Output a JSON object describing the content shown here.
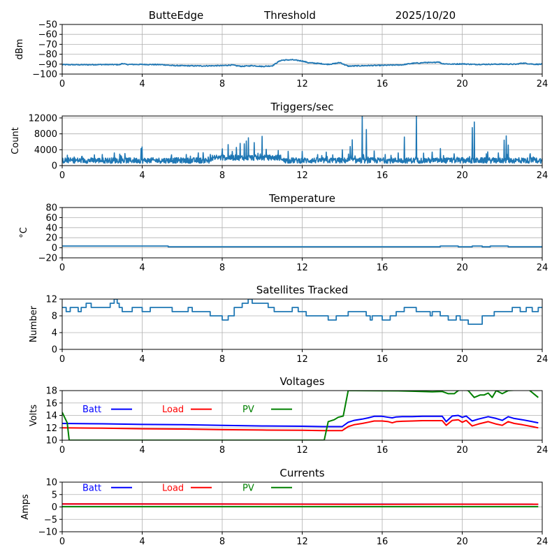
{
  "header": {
    "station": "ButteEdge",
    "mode": "Threshold",
    "date": "2025/10/20"
  },
  "chart_data": [
    {
      "id": "threshold",
      "type": "line",
      "title": "",
      "xlabel": "",
      "ylabel": "dBm",
      "xlim": [
        0,
        24
      ],
      "ylim": [
        -100,
        -50
      ],
      "xticks": [
        0,
        4,
        8,
        12,
        16,
        20,
        24
      ],
      "yticks": [
        -100,
        -90,
        -80,
        -70,
        -60,
        -50
      ],
      "ytick_labels": [
        "−100",
        "−90",
        "−80",
        "−70",
        "−60",
        "−50"
      ],
      "grid": true,
      "series": [
        {
          "name": "threshold",
          "color": "#1f77b4",
          "x": [
            0,
            1,
            2,
            2.9,
            3.0,
            3.2,
            4,
            5,
            5.5,
            6,
            7,
            8,
            8.5,
            8.7,
            9,
            9.5,
            10,
            10.5,
            10.7,
            10.9,
            11,
            11.5,
            12,
            12.3,
            12.6,
            13,
            13.2,
            13.5,
            13.9,
            14.1,
            14.3,
            15,
            16,
            17,
            17.5,
            17.9,
            18.2,
            18.5,
            18.8,
            19,
            19.5,
            20,
            20.5,
            21,
            22,
            22.7,
            23,
            23.3,
            23.6,
            24
          ],
          "y": [
            -90.5,
            -90.6,
            -90.4,
            -90.5,
            -89.2,
            -90.3,
            -90.3,
            -90.5,
            -91.4,
            -91.6,
            -91.8,
            -91.5,
            -90.8,
            -91.6,
            -92.2,
            -91.5,
            -92.3,
            -91.7,
            -89,
            -86.5,
            -86,
            -85.6,
            -86.8,
            -88.5,
            -89,
            -89.6,
            -90.2,
            -89.8,
            -88.4,
            -90.4,
            -92,
            -91.6,
            -91.2,
            -90.7,
            -89.2,
            -88.8,
            -88.3,
            -88.6,
            -87.6,
            -89.5,
            -90,
            -89.7,
            -90.2,
            -90.2,
            -90,
            -90.1,
            -88.9,
            -89.5,
            -90.1,
            -90.1
          ]
        }
      ]
    },
    {
      "id": "triggers",
      "type": "line",
      "title": "Triggers/sec",
      "xlabel": "",
      "ylabel": "Count",
      "xlim": [
        0,
        24
      ],
      "ylim": [
        0,
        12500
      ],
      "xticks": [
        0,
        4,
        8,
        12,
        16,
        20,
        24
      ],
      "yticks": [
        0,
        4000,
        8000,
        12000
      ],
      "ytick_labels": [
        "0",
        "4000",
        "8000",
        "12000"
      ],
      "grid": true,
      "baseline": 1300,
      "series": [
        {
          "name": "triggers",
          "color": "#1f77b4",
          "spikes_x": [
            2.0,
            2.6,
            3.95,
            4.0,
            6.2,
            6.8,
            7.4,
            8.0,
            8.3,
            8.7,
            8.9,
            9.1,
            9.2,
            9.3,
            9.6,
            10.0,
            10.2,
            10.8,
            11.3,
            12.0,
            13.2,
            14.0,
            14.4,
            14.5,
            15.0,
            15.2,
            15.6,
            16.8,
            17.1,
            17.7,
            18.5,
            18.9,
            19.6,
            20.5,
            20.6,
            21.2,
            21.8,
            22.1,
            22.2,
            22.3,
            23.4
          ],
          "spikes_y": [
            2800,
            3200,
            4300,
            4700,
            2800,
            3200,
            2800,
            4200,
            5300,
            4600,
            5600,
            5500,
            6200,
            7000,
            5800,
            7400,
            4100,
            3800,
            3600,
            3600,
            3400,
            4000,
            4800,
            6500,
            12500,
            9100,
            3700,
            3200,
            7200,
            12500,
            3400,
            4300,
            3000,
            9600,
            11000,
            3000,
            3200,
            6400,
            7500,
            5200,
            3000
          ]
        }
      ]
    },
    {
      "id": "temperature",
      "type": "line",
      "title": "Temperature",
      "xlabel": "",
      "ylabel": "°C",
      "xlim": [
        0,
        24
      ],
      "ylim": [
        -20,
        80
      ],
      "xticks": [
        0,
        4,
        8,
        12,
        16,
        20,
        24
      ],
      "yticks": [
        -20,
        0,
        20,
        40,
        60,
        80
      ],
      "ytick_labels": [
        "−20",
        "0",
        "20",
        "40",
        "60",
        "80"
      ],
      "grid": true,
      "series": [
        {
          "name": "temperature",
          "color": "#1f77b4",
          "x": [
            0,
            5.3,
            5.3,
            18.9,
            18.9,
            19.8,
            19.8,
            20.5,
            20.5,
            21.0,
            21.0,
            21.4,
            21.4,
            22.3,
            22.3,
            24
          ],
          "y": [
            3.5,
            3.5,
            2,
            2,
            3.5,
            3.5,
            2,
            2,
            3.5,
            3.5,
            2,
            2,
            3.5,
            3.5,
            2,
            2
          ]
        }
      ]
    },
    {
      "id": "satellites",
      "type": "line",
      "title": "Satellites Tracked",
      "xlabel": "",
      "ylabel": "Number",
      "xlim": [
        0,
        24
      ],
      "ylim": [
        0,
        12
      ],
      "xticks": [
        0,
        4,
        8,
        12,
        16,
        20,
        24
      ],
      "yticks": [
        0,
        4,
        8,
        12
      ],
      "ytick_labels": [
        "0",
        "4",
        "8",
        "12"
      ],
      "grid": true,
      "series": [
        {
          "name": "satellites",
          "color": "#1f77b4",
          "x": [
            0,
            0.2,
            0.2,
            0.4,
            0.4,
            0.8,
            0.8,
            0.95,
            0.95,
            1.2,
            1.2,
            1.45,
            1.45,
            2.4,
            2.4,
            2.6,
            2.6,
            2.75,
            2.75,
            2.85,
            2.85,
            3.0,
            3.0,
            3.15,
            3.15,
            3.5,
            3.5,
            4.0,
            4.0,
            4.1,
            4.1,
            4.4,
            4.4,
            5.3,
            5.3,
            5.5,
            5.5,
            6.3,
            6.3,
            6.5,
            6.5,
            7.4,
            7.4,
            8.0,
            8.0,
            8.3,
            8.3,
            8.6,
            8.6,
            9.0,
            9.0,
            9.3,
            9.3,
            9.5,
            9.5,
            10.3,
            10.3,
            10.6,
            10.6,
            11.5,
            11.5,
            11.8,
            11.8,
            12.2,
            12.2,
            12.5,
            12.5,
            13.3,
            13.3,
            13.7,
            13.7,
            14.3,
            14.3,
            15.2,
            15.2,
            15.4,
            15.4,
            15.5,
            15.5,
            16.0,
            16.0,
            16.4,
            16.4,
            16.7,
            16.7,
            17.1,
            17.1,
            17.7,
            17.7,
            18.4,
            18.4,
            18.5,
            18.5,
            18.9,
            18.9,
            19.3,
            19.3,
            19.7,
            19.7,
            19.9,
            19.9,
            20.3,
            20.3,
            21.0,
            21.0,
            21.6,
            21.6,
            22.5,
            22.5,
            22.9,
            22.9,
            23.2,
            23.2,
            23.5,
            23.5,
            23.8,
            23.8,
            24
          ],
          "y": [
            10,
            10,
            9,
            9,
            10,
            10,
            9,
            9,
            10,
            10,
            11,
            11,
            10,
            10,
            11,
            11,
            12,
            12,
            11,
            11,
            10,
            10,
            9,
            9,
            9,
            9,
            10,
            10,
            9,
            9,
            9,
            9,
            10,
            10,
            10,
            10,
            9,
            9,
            10,
            10,
            9,
            9,
            8,
            8,
            7,
            7,
            8,
            8,
            10,
            10,
            11,
            11,
            12,
            12,
            11,
            11,
            10,
            10,
            9,
            9,
            10,
            10,
            9,
            9,
            8,
            8,
            8,
            8,
            7,
            7,
            8,
            8,
            9,
            9,
            8,
            8,
            7,
            7,
            8,
            8,
            7,
            7,
            8,
            8,
            9,
            9,
            10,
            10,
            9,
            9,
            8,
            8,
            9,
            9,
            8,
            8,
            7,
            7,
            8,
            8,
            7,
            7,
            6,
            6,
            8,
            8,
            9,
            9,
            10,
            10,
            9,
            9,
            10,
            10,
            9,
            9,
            10,
            10
          ]
        }
      ]
    },
    {
      "id": "voltages",
      "type": "line",
      "title": "Voltages",
      "xlabel": "",
      "ylabel": "Volts",
      "xlim": [
        0,
        24
      ],
      "ylim": [
        10,
        18
      ],
      "xticks": [
        0,
        4,
        8,
        12,
        16,
        20,
        24
      ],
      "yticks": [
        10,
        12,
        14,
        16,
        18
      ],
      "ytick_labels": [
        "10",
        "12",
        "14",
        "16",
        "18"
      ],
      "grid": true,
      "legend": {
        "placement": "top-inline",
        "entries": [
          "Batt",
          "Load",
          "PV"
        ]
      },
      "series": [
        {
          "name": "Batt",
          "color": "#0000ff",
          "x": [
            0,
            2,
            4,
            6,
            8,
            10,
            12,
            13,
            14,
            14.3,
            14.6,
            15,
            15.3,
            15.6,
            16,
            16.3,
            16.5,
            16.7,
            17,
            17.5,
            18,
            18.5,
            19,
            19.2,
            19.5,
            19.8,
            20,
            20.2,
            20.5,
            20.8,
            21.3,
            21.7,
            22,
            22.3,
            22.6,
            23,
            23.5,
            23.8
          ],
          "y": [
            12.7,
            12.65,
            12.55,
            12.5,
            12.4,
            12.3,
            12.25,
            12.2,
            12.2,
            12.9,
            13.2,
            13.4,
            13.6,
            13.85,
            13.85,
            13.7,
            13.6,
            13.75,
            13.8,
            13.8,
            13.85,
            13.85,
            13.85,
            13.0,
            13.9,
            14.0,
            13.7,
            13.9,
            13.1,
            13.4,
            13.8,
            13.5,
            13.2,
            13.8,
            13.5,
            13.3,
            13.0,
            12.8
          ]
        },
        {
          "name": "Load",
          "color": "#ff0000",
          "x": [
            0,
            2,
            4,
            6,
            8,
            10,
            12,
            13,
            14,
            14.3,
            14.6,
            15,
            15.3,
            15.6,
            16,
            16.3,
            16.5,
            16.7,
            17,
            17.5,
            18,
            18.5,
            19,
            19.2,
            19.5,
            19.8,
            20,
            20.2,
            20.5,
            20.8,
            21.3,
            21.7,
            22,
            22.3,
            22.6,
            23,
            23.5,
            23.8
          ],
          "y": [
            12.0,
            11.95,
            11.85,
            11.8,
            11.7,
            11.65,
            11.6,
            11.55,
            11.55,
            12.2,
            12.5,
            12.7,
            12.9,
            13.1,
            13.1,
            13.0,
            12.8,
            13.0,
            13.05,
            13.1,
            13.15,
            13.15,
            13.15,
            12.4,
            13.2,
            13.3,
            12.9,
            13.2,
            12.3,
            12.6,
            13.0,
            12.6,
            12.4,
            13.0,
            12.7,
            12.5,
            12.2,
            12.0
          ]
        },
        {
          "name": "PV",
          "color": "#008000",
          "x": [
            0,
            0.25,
            0.35,
            13.1,
            13.3,
            13.6,
            13.8,
            14.05,
            14.3,
            16.8,
            17.5,
            18.5,
            19.0,
            19.3,
            19.6,
            19.8,
            20.0,
            20.3,
            20.6,
            20.9,
            21.1,
            21.3,
            21.5,
            21.7,
            22.0,
            22.3,
            23.3,
            23.8
          ],
          "y": [
            14.5,
            12.8,
            10.0,
            10.0,
            13.0,
            13.3,
            13.7,
            13.9,
            18.0,
            17.95,
            17.9,
            17.8,
            17.85,
            17.5,
            17.5,
            18.0,
            18.2,
            18.0,
            16.9,
            17.3,
            17.3,
            17.6,
            16.9,
            18.0,
            17.5,
            18.0,
            18.2,
            16.9
          ]
        }
      ]
    },
    {
      "id": "currents",
      "type": "line",
      "title": "Currents",
      "xlabel": "",
      "ylabel": "Amps",
      "xlim": [
        0,
        24
      ],
      "ylim": [
        -10,
        10
      ],
      "xticks": [
        0,
        4,
        8,
        12,
        16,
        20,
        24
      ],
      "yticks": [
        -10,
        -5,
        0,
        5,
        10
      ],
      "ytick_labels": [
        "−10",
        "−5",
        "0",
        "5",
        "10"
      ],
      "grid": true,
      "legend": {
        "placement": "top-inline",
        "entries": [
          "Batt",
          "Load",
          "PV"
        ]
      },
      "series": [
        {
          "name": "Batt",
          "color": "#0000ff",
          "x": [
            0,
            23.8
          ],
          "y": [
            1.2,
            1.1
          ]
        },
        {
          "name": "Load",
          "color": "#ff0000",
          "x": [
            0,
            8,
            16,
            20,
            23.8
          ],
          "y": [
            1.2,
            1.15,
            1.05,
            1.1,
            1.1
          ]
        },
        {
          "name": "PV",
          "color": "#008000",
          "x": [
            0,
            23.8
          ],
          "y": [
            0.1,
            0.1
          ]
        }
      ]
    }
  ]
}
